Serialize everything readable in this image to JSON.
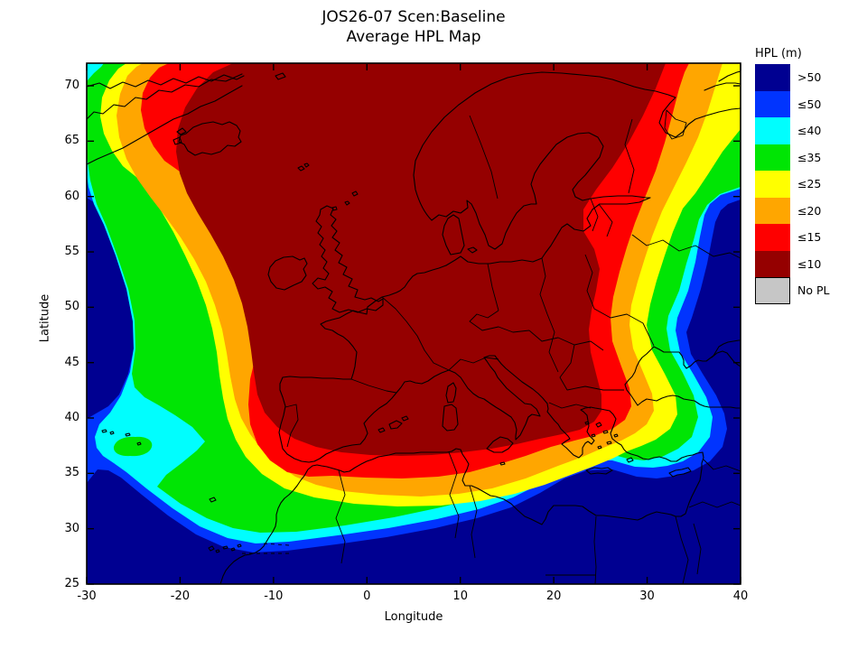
{
  "figure": {
    "title_line1": "JOS26-07 Scen:Baseline",
    "title_line2": "Average HPL Map"
  },
  "axes": {
    "xlabel": "Longitude",
    "ylabel": "Latitude",
    "x_ticks": [
      -30,
      -20,
      -10,
      0,
      10,
      20,
      30,
      40
    ],
    "y_ticks": [
      70,
      65,
      60,
      55,
      50,
      45,
      40,
      35,
      30,
      25
    ],
    "x_range": [
      -30,
      40
    ],
    "y_range": [
      25,
      72
    ]
  },
  "colors": {
    "navy": "#000091",
    "blue": "#0134FE",
    "cyan": "#00FEFE",
    "green": "#00E504",
    "yellow": "#FFFF00",
    "orange": "#FFA600",
    "red": "#FE0000",
    "darkred": "#950000",
    "gray": "#C6C6C6",
    "coast": "#000000"
  },
  "legend": {
    "title": "HPL (m)",
    "items": [
      {
        "label": ">50",
        "colorKey": "navy",
        "bordered": false
      },
      {
        "label": "≤50",
        "colorKey": "blue",
        "bordered": false
      },
      {
        "label": "≤40",
        "colorKey": "cyan",
        "bordered": false
      },
      {
        "label": "≤35",
        "colorKey": "green",
        "bordered": false
      },
      {
        "label": "≤25",
        "colorKey": "yellow",
        "bordered": false
      },
      {
        "label": "≤20",
        "colorKey": "orange",
        "bordered": false
      },
      {
        "label": "≤15",
        "colorKey": "red",
        "bordered": false
      },
      {
        "label": "≤10",
        "colorKey": "darkred",
        "bordered": false
      },
      {
        "label": "No PL",
        "colorKey": "gray",
        "bordered": true
      }
    ]
  },
  "chart_data": {
    "type": "heatmap",
    "subtype": "filled-contour-map",
    "title": "JOS26-07 Scen:Baseline — Average HPL Map",
    "xlabel": "Longitude",
    "ylabel": "Latitude",
    "xlim": [
      -30,
      40
    ],
    "ylim": [
      25,
      72
    ],
    "x_ticks": [
      -30,
      -20,
      -10,
      0,
      10,
      20,
      30,
      40
    ],
    "y_ticks": [
      70,
      65,
      60,
      55,
      50,
      45,
      40,
      35,
      30,
      25
    ],
    "grid": false,
    "legend_position": "right",
    "legend_title": "HPL (m)",
    "bands": [
      {
        "label": ">50",
        "range_m": "greater than 50",
        "color": "#000091"
      },
      {
        "label": "≤50",
        "range_m": "40-50",
        "color": "#0134FE"
      },
      {
        "label": "≤40",
        "range_m": "35-40",
        "color": "#00FEFE"
      },
      {
        "label": "≤35",
        "range_m": "25-35",
        "color": "#00E504"
      },
      {
        "label": "≤25",
        "range_m": "20-25",
        "color": "#FFFF00"
      },
      {
        "label": "≤20",
        "range_m": "15-20",
        "color": "#FFA600"
      },
      {
        "label": "≤15",
        "range_m": "10-15",
        "color": "#FE0000"
      },
      {
        "label": "≤10",
        "range_m": "10 or less",
        "color": "#950000"
      },
      {
        "label": "No PL",
        "range_m": "no protection level",
        "color": "#C6C6C6"
      }
    ],
    "regions": [
      {
        "band": "≤10",
        "extent": "core covering most of continental Europe, British Isles, Scandinavia, Iceland (east), Iberia, Italy, Greece, roughly lon -12..28, lat 36..72"
      },
      {
        "band": "≤15 to ≤50",
        "extent": "concentric rings around the core, exiting the top edge near lon -18..-13 (west) and lon 21..28 (east)"
      },
      {
        "band": ">50",
        "extent": "west/south-west Atlantic (lon < -20, lat < 55), south of ~lat 30 over Africa/Middle East, and eastern edge blob (lon > 33, lat 30..55)"
      },
      {
        "band": "local low-HPL island",
        "extent": "small green/cyan bulge around the Azores (~lat 38.5, lon -27)"
      }
    ]
  }
}
